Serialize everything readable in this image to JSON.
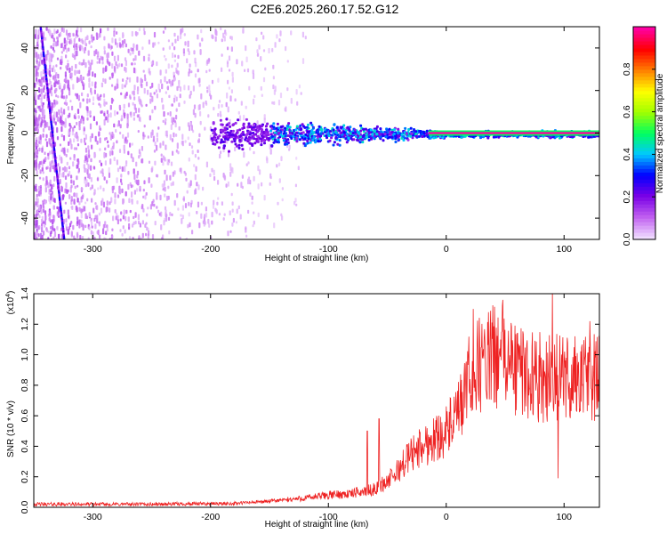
{
  "title": "C2E6.2025.260.17.52.G12",
  "chart_data": [
    {
      "type": "heatmap",
      "name": "spectrogram",
      "xlabel": "Height of straight line (km)",
      "ylabel": "Frequency (Hz)",
      "xlim": [
        -350,
        130
      ],
      "ylim": [
        -50,
        50
      ],
      "xticks": [
        -300,
        -200,
        -100,
        0,
        100
      ],
      "xtick_labels": [
        "-300",
        "-200",
        "-100",
        "0",
        "100"
      ],
      "yticks": [
        -40,
        -20,
        0,
        20,
        40
      ],
      "ytick_labels": [
        "-40",
        "-20",
        "0",
        "20",
        "40"
      ],
      "colorbar": {
        "label": "Normalized spectral amplitude",
        "range": [
          0,
          1
        ],
        "ticks": [
          0.0,
          0.2,
          0.4,
          0.6,
          0.8
        ],
        "tick_labels": [
          "0.0",
          "0.2",
          "0.4",
          "0.6",
          "0.8"
        ],
        "colormap": [
          "#f0dcff",
          "#c060f0",
          "#7a00e6",
          "#0000ff",
          "#00c8ff",
          "#00ff60",
          "#a0ff00",
          "#ffff00",
          "#ff8000",
          "#ff0000",
          "#ff00a0"
        ]
      },
      "features": [
        {
          "name": "diffuse noise",
          "x_range": [
            -350,
            -130
          ],
          "freq_range": [
            -50,
            50
          ],
          "amplitude": 0.1
        },
        {
          "name": "signal band",
          "x_range": [
            -200,
            130
          ],
          "center_freq": 0,
          "half_width_start": 10,
          "half_width_end": 2
        },
        {
          "name": "steady tone",
          "x_range": [
            -15,
            130
          ],
          "freq": 0,
          "amplitude": 1.0
        },
        {
          "name": "sweep line",
          "x_range": [
            -345,
            -325
          ],
          "freq_range": [
            50,
            -50
          ],
          "amplitude": 0.15
        }
      ]
    },
    {
      "type": "line",
      "name": "snr",
      "xlabel": "Height of straight line (km)",
      "ylabel": "SNR (10 * v/v)",
      "yscale_label": "(x10",
      "yscale_exponent": "4",
      "xlim": [
        -350,
        130
      ],
      "ylim": [
        0,
        1.4
      ],
      "xticks": [
        -300,
        -200,
        -100,
        0,
        100
      ],
      "xtick_labels": [
        "-300",
        "-200",
        "-100",
        "0",
        "100"
      ],
      "yticks": [
        0.0,
        0.2,
        0.4,
        0.6,
        0.8,
        1.0,
        1.2,
        1.4
      ],
      "ytick_labels": [
        "0.0",
        "0.2",
        "0.4",
        "0.6",
        "0.8",
        "1.0",
        "1.2",
        "1.4"
      ],
      "color": "#ee2222",
      "profile": {
        "x": [
          -350,
          -250,
          -180,
          -150,
          -120,
          -100,
          -80,
          -60,
          -45,
          -30,
          -20,
          -10,
          0,
          10,
          20,
          30,
          45,
          60,
          80,
          100,
          130
        ],
        "y": [
          0.02,
          0.02,
          0.025,
          0.04,
          0.06,
          0.08,
          0.09,
          0.12,
          0.2,
          0.35,
          0.4,
          0.45,
          0.5,
          0.6,
          0.85,
          0.95,
          1.0,
          0.9,
          0.85,
          0.85,
          0.85
        ]
      },
      "peaks": [
        {
          "x": -67,
          "y": 0.5
        },
        {
          "x": -57,
          "y": 0.58
        },
        {
          "x": 23,
          "y": 1.3
        },
        {
          "x": 48,
          "y": 1.36
        },
        {
          "x": 90,
          "y": 1.42
        },
        {
          "x": 122,
          "y": 1.22
        }
      ],
      "troughs": [
        {
          "x": 95,
          "y": 0.19
        }
      ]
    }
  ]
}
